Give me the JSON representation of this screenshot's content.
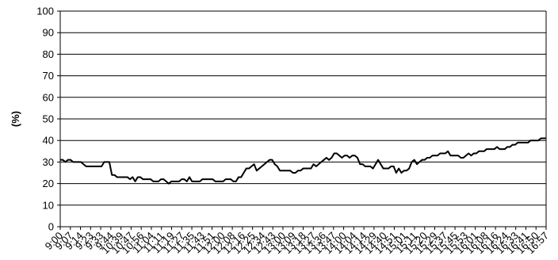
{
  "chart_data": {
    "type": "line",
    "title": "",
    "xlabel": "",
    "ylabel": "(%)",
    "ylim": [
      0,
      100
    ],
    "yticks": [
      "0",
      "10",
      "20",
      "30",
      "40",
      "50",
      "60",
      "70",
      "80",
      "90",
      "100"
    ],
    "grid": "horizontal",
    "legend": "none",
    "line_color": "#000000",
    "x_tick_labels": [
      "9:00",
      "9:07",
      "9:14",
      "9:23",
      "9:33",
      "9:44",
      "10:39",
      "10:47",
      "10:56",
      "11:04",
      "11:11",
      "11:19",
      "11:27",
      "11:35",
      "11:43",
      "11:51",
      "12:00",
      "12:08",
      "12:16",
      "12:25",
      "12:34",
      "12:43",
      "13:00",
      "13:09",
      "13:18",
      "13:27",
      "13:36",
      "13:47",
      "14:00",
      "14:04",
      "14:14",
      "14:29",
      "14:40",
      "14:51",
      "15:01",
      "15:11",
      "15:20",
      "15:29",
      "15:37",
      "15:45",
      "15:53",
      "16:01",
      "16:08",
      "16:16",
      "16:24",
      "16:33",
      "16:41",
      "16:50",
      "16:57"
    ],
    "series": [
      {
        "values": [
          31,
          31,
          30,
          31,
          31,
          30,
          30,
          30,
          30,
          29,
          28,
          28,
          28,
          28,
          28,
          28,
          28,
          30,
          30,
          30,
          24,
          24,
          23,
          23,
          23,
          23,
          23,
          22,
          23,
          21,
          23,
          23,
          22,
          22,
          22,
          22,
          21,
          21,
          21,
          22,
          22,
          21,
          20,
          21,
          21,
          21,
          21,
          22,
          22,
          21,
          23,
          21,
          21,
          21,
          21,
          22,
          22,
          22,
          22,
          22,
          21,
          21,
          21,
          21,
          22,
          22,
          22,
          21,
          21,
          23,
          23,
          25,
          27,
          27,
          28,
          29,
          26,
          27,
          28,
          29,
          30,
          31,
          31,
          29,
          28,
          26,
          26,
          26,
          26,
          26,
          25,
          25,
          26,
          26,
          27,
          27,
          27,
          27,
          29,
          28,
          29,
          30,
          31,
          32,
          31,
          32,
          34,
          34,
          33,
          32,
          33,
          33,
          32,
          33,
          33,
          32,
          29,
          29,
          28,
          28,
          28,
          27,
          29,
          31,
          29,
          27,
          27,
          27,
          28,
          28,
          25,
          27,
          25,
          26,
          26,
          27,
          30,
          31,
          29,
          30,
          31,
          31,
          32,
          32,
          33,
          33,
          33,
          34,
          34,
          34,
          35,
          33,
          33,
          33,
          33,
          32,
          32,
          33,
          34,
          33,
          34,
          34,
          35,
          35,
          35,
          36,
          36,
          36,
          36,
          37,
          36,
          36,
          36,
          37,
          37,
          38,
          38,
          39,
          39,
          39,
          39,
          39,
          40,
          40,
          40,
          40,
          41,
          41,
          41
        ]
      }
    ]
  }
}
